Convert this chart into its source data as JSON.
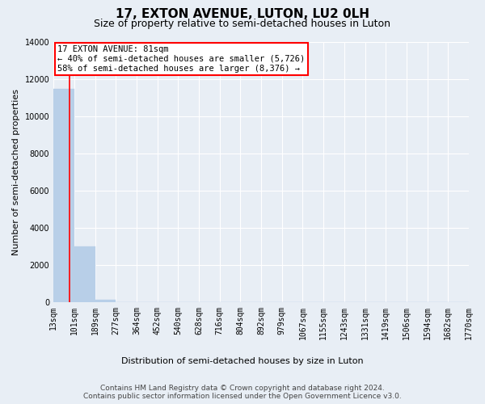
{
  "title": "17, EXTON AVENUE, LUTON, LU2 0LH",
  "subtitle": "Size of property relative to semi-detached houses in Luton",
  "xlabel": "Distribution of semi-detached houses by size in Luton",
  "ylabel": "Number of semi-detached properties",
  "bar_values": [
    11450,
    3000,
    150,
    0,
    0,
    0,
    0,
    0,
    0,
    0,
    0,
    0,
    0,
    0,
    0,
    0,
    0,
    0,
    0,
    0
  ],
  "bar_color": "#b8cfe8",
  "bar_edge_color": "#b8cfe8",
  "x_labels": [
    "13sqm",
    "101sqm",
    "189sqm",
    "277sqm",
    "364sqm",
    "452sqm",
    "540sqm",
    "628sqm",
    "716sqm",
    "804sqm",
    "892sqm",
    "979sqm",
    "1067sqm",
    "1155sqm",
    "1243sqm",
    "1331sqm",
    "1419sqm",
    "1506sqm",
    "1594sqm",
    "1682sqm",
    "1770sqm"
  ],
  "ylim": [
    0,
    14000
  ],
  "yticks": [
    0,
    2000,
    4000,
    6000,
    8000,
    10000,
    12000,
    14000
  ],
  "annotation_text": "17 EXTON AVENUE: 81sqm\n← 40% of semi-detached houses are smaller (5,726)\n58% of semi-detached houses are larger (8,376) →",
  "footer_line1": "Contains HM Land Registry data © Crown copyright and database right 2024.",
  "footer_line2": "Contains public sector information licensed under the Open Government Licence v3.0.",
  "background_color": "#e8eef5",
  "plot_bg_color": "#e8eef5",
  "grid_color": "#ffffff",
  "title_fontsize": 11,
  "subtitle_fontsize": 9,
  "axis_label_fontsize": 8,
  "tick_fontsize": 7,
  "annotation_fontsize": 7.5,
  "footer_fontsize": 6.5
}
